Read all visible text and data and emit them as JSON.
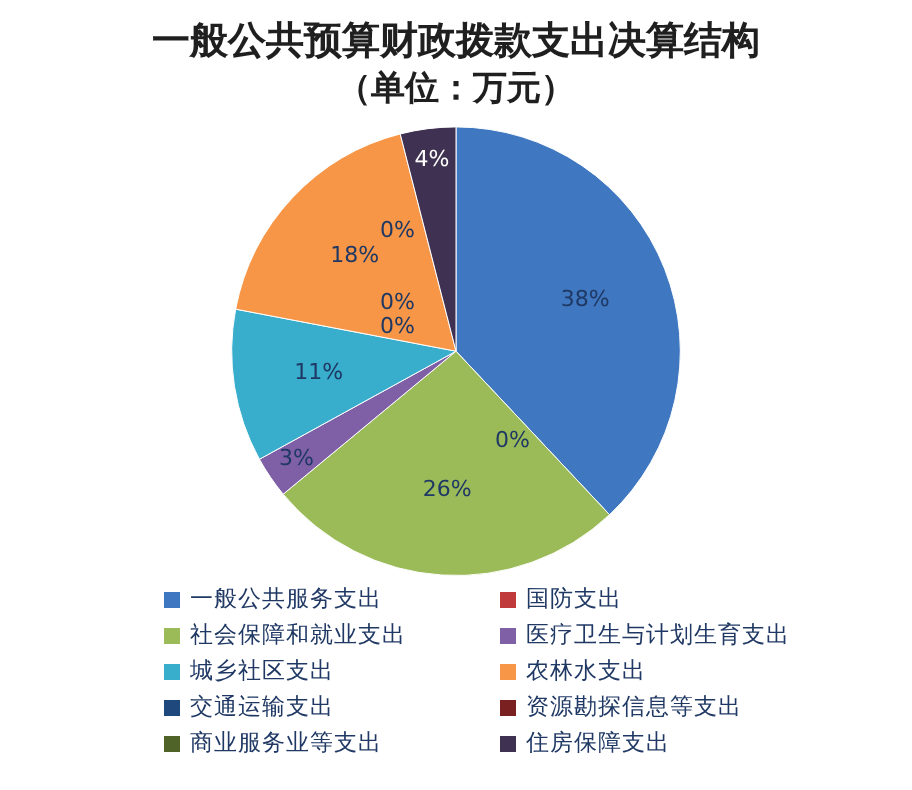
{
  "chart_data": {
    "type": "pie",
    "title": "一般公共预算财政拨款支出决算结构",
    "subtitle": "（单位：万元）",
    "categories": [
      "一般公共服务支出",
      "国防支出",
      "社会保障和就业支出",
      "医疗卫生与计划生育支出",
      "城乡社区支出",
      "农林水支出",
      "交通运输支出",
      "资源勘探信息等支出",
      "商业服务业等支出",
      "住房保障支出"
    ],
    "values": [
      38,
      0,
      26,
      3,
      11,
      18,
      0,
      0,
      0,
      4
    ],
    "colors": [
      "#3f77c0",
      "#c0393b",
      "#9bbb59",
      "#7f5fa6",
      "#38adcc",
      "#f79646",
      "#1f497d",
      "#7b2020",
      "#4f6228",
      "#3f3151"
    ],
    "value_labels": [
      "38%",
      "0%",
      "26%",
      "3%",
      "11%",
      "18%",
      "0%",
      "0%",
      "0%",
      "4%"
    ],
    "legend": "bottom"
  }
}
